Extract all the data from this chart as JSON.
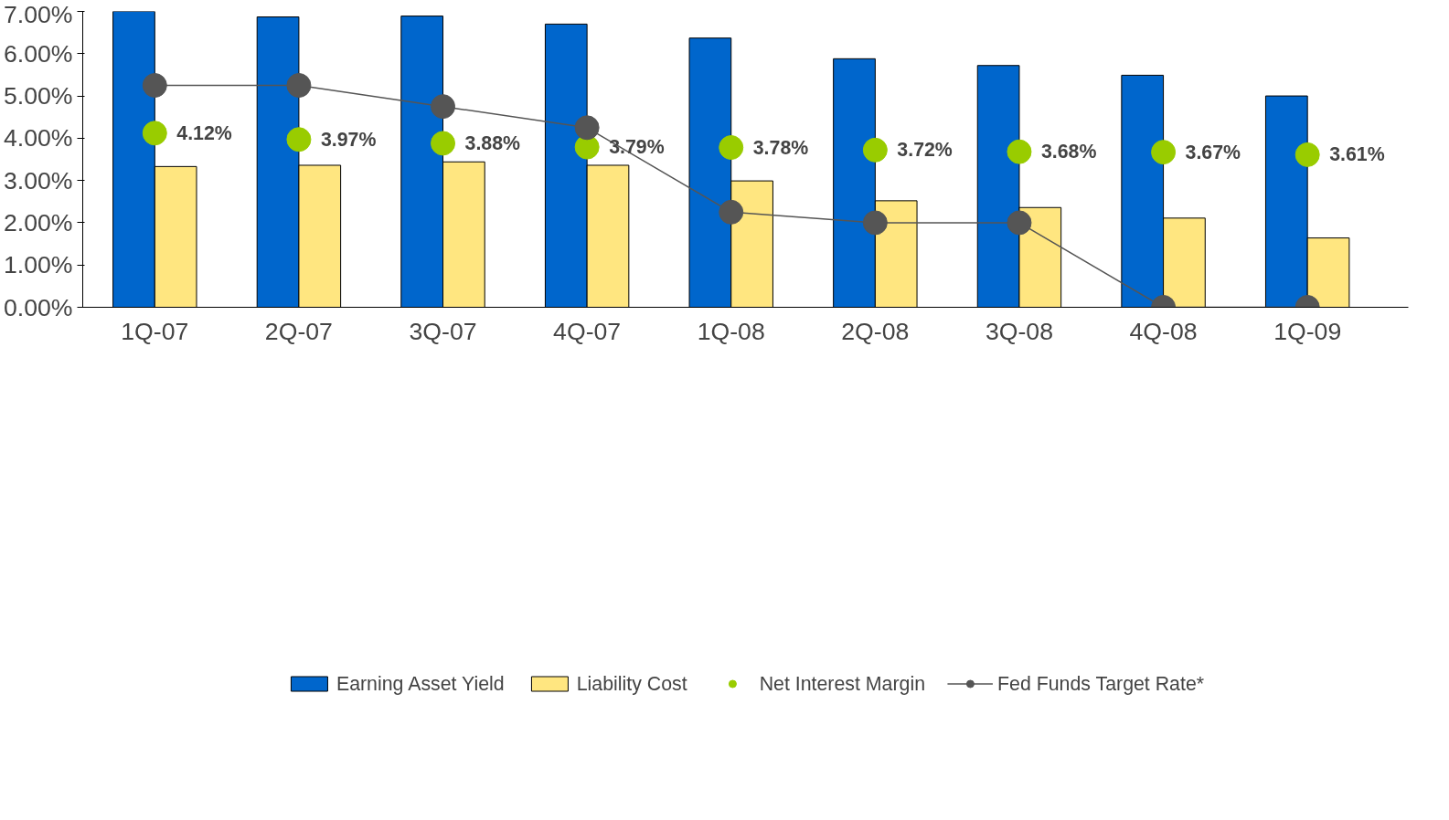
{
  "chart_data": {
    "type": "bar",
    "categories": [
      "1Q-07",
      "2Q-07",
      "3Q-07",
      "4Q-07",
      "1Q-08",
      "2Q-08",
      "3Q-08",
      "4Q-08",
      "1Q-09"
    ],
    "series": [
      {
        "name": "Earning Asset Yield",
        "color": "#0066cc",
        "values": [
          7.0,
          6.87,
          6.89,
          6.7,
          6.37,
          5.88,
          5.72,
          5.49,
          5.0
        ]
      },
      {
        "name": "Liability Cost",
        "color": "#ffe680",
        "values": [
          3.33,
          3.36,
          3.44,
          3.36,
          2.99,
          2.52,
          2.36,
          2.11,
          1.64
        ]
      },
      {
        "name": "Net Interest Margin",
        "type": "scatter",
        "marker": "circle",
        "color": "#99cc00",
        "values": [
          4.12,
          3.97,
          3.88,
          3.79,
          3.78,
          3.72,
          3.68,
          3.67,
          3.61
        ],
        "value_labels": [
          "4.12%",
          "3.97%",
          "3.88%",
          "3.79%",
          "3.78%",
          "3.72%",
          "3.68%",
          "3.67%",
          "3.61%"
        ]
      },
      {
        "name": "Fed Funds Target Rate*",
        "type": "line",
        "marker": "circle",
        "color": "#555555",
        "values": [
          5.25,
          5.25,
          4.75,
          4.25,
          2.25,
          2.0,
          2.0,
          0.0,
          0.0
        ]
      }
    ],
    "ylim": [
      0,
      7
    ],
    "yticks": [
      {
        "value": 0,
        "label": "0.00%"
      },
      {
        "value": 1,
        "label": "1.00%"
      },
      {
        "value": 2,
        "label": "2.00%"
      },
      {
        "value": 3,
        "label": "3.00%"
      },
      {
        "value": 4,
        "label": "4.00%"
      },
      {
        "value": 5,
        "label": "5.00%"
      },
      {
        "value": 6,
        "label": "6.00%"
      },
      {
        "value": 7,
        "label": "7.00%"
      }
    ],
    "grid": false,
    "legend": "bottom"
  }
}
